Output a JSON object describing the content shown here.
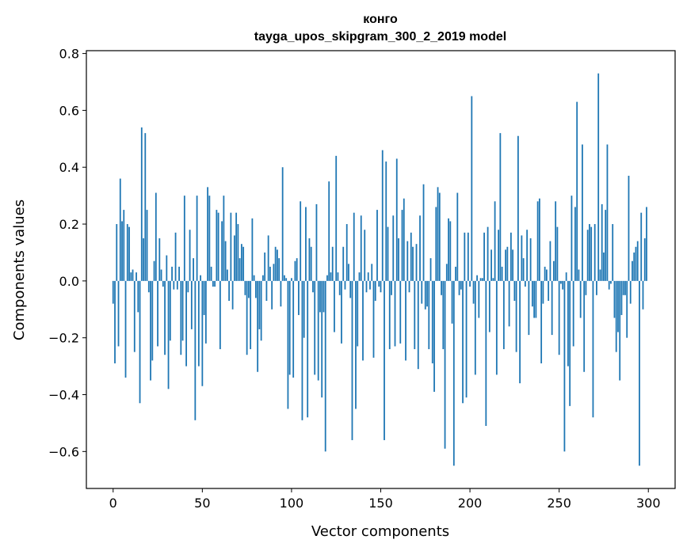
{
  "chart_data": {
    "type": "bar",
    "title_line1": "конго",
    "title_line2": "tayga_upos_skipgram_300_2_2019 model",
    "xlabel": "Vector components",
    "ylabel": "Components values",
    "xlim": [
      -15,
      315
    ],
    "ylim": [
      -0.73,
      0.81
    ],
    "xticks": [
      0,
      50,
      100,
      150,
      200,
      250,
      300
    ],
    "yticks": [
      -0.6,
      -0.4,
      -0.2,
      0.0,
      0.2,
      0.4,
      0.6,
      0.8
    ],
    "ytick_labels": [
      "−0.6",
      "−0.4",
      "−0.2",
      "0.0",
      "0.2",
      "0.4",
      "0.6",
      "0.8"
    ],
    "grid": false,
    "bar_color": "#1f77b4",
    "values": [
      -0.08,
      -0.29,
      0.2,
      -0.23,
      0.36,
      0.21,
      0.25,
      -0.34,
      0.2,
      0.19,
      0.03,
      0.04,
      -0.25,
      0.03,
      -0.11,
      -0.43,
      0.54,
      0.15,
      0.52,
      0.25,
      -0.04,
      -0.35,
      -0.28,
      0.07,
      0.31,
      -0.23,
      0.15,
      0.04,
      -0.02,
      -0.26,
      0.09,
      -0.38,
      -0.21,
      0.05,
      -0.03,
      0.17,
      -0.03,
      0.05,
      -0.26,
      -0.21,
      0.3,
      -0.3,
      -0.04,
      0.18,
      -0.17,
      0.08,
      -0.49,
      0.3,
      -0.3,
      0.02,
      -0.37,
      -0.12,
      -0.22,
      0.33,
      0.3,
      0.05,
      -0.02,
      -0.02,
      0.25,
      0.24,
      -0.24,
      0.21,
      0.3,
      0.14,
      0.04,
      -0.07,
      0.24,
      -0.1,
      0.16,
      0.24,
      0.2,
      0.08,
      0.13,
      0.12,
      -0.05,
      -0.26,
      -0.06,
      -0.24,
      0.22,
      0.02,
      -0.06,
      -0.32,
      -0.17,
      -0.21,
      0.02,
      0.1,
      -0.07,
      0.16,
      0.05,
      -0.1,
      0.06,
      0.12,
      0.11,
      0.08,
      -0.09,
      0.4,
      0.02,
      0.01,
      -0.45,
      -0.33,
      0.01,
      -0.34,
      0.07,
      0.08,
      -0.12,
      0.28,
      -0.49,
      -0.2,
      0.26,
      -0.48,
      0.15,
      0.12,
      -0.04,
      -0.33,
      0.27,
      -0.35,
      -0.11,
      -0.41,
      -0.11,
      -0.6,
      0.02,
      0.35,
      0.03,
      0.12,
      -0.18,
      0.44,
      0.03,
      -0.05,
      -0.22,
      0.12,
      -0.03,
      0.2,
      0.06,
      -0.06,
      -0.56,
      0.24,
      -0.45,
      -0.23,
      0.03,
      0.23,
      -0.28,
      0.18,
      -0.04,
      0.03,
      -0.03,
      0.06,
      -0.27,
      -0.07,
      0.25,
      -0.02,
      -0.04,
      0.46,
      -0.56,
      0.42,
      0.19,
      -0.24,
      -0.05,
      0.23,
      -0.23,
      0.43,
      0.15,
      -0.22,
      0.25,
      0.29,
      -0.28,
      0.14,
      -0.04,
      0.17,
      0.12,
      -0.24,
      0.13,
      -0.31,
      0.23,
      -0.08,
      0.34,
      -0.1,
      -0.09,
      -0.24,
      0.08,
      -0.29,
      -0.39,
      0.26,
      0.33,
      0.31,
      -0.05,
      -0.24,
      -0.59,
      0.06,
      0.22,
      0.21,
      -0.15,
      -0.65,
      0.05,
      0.31,
      -0.05,
      -0.03,
      -0.43,
      0.17,
      -0.41,
      0.17,
      -0.02,
      0.65,
      -0.08,
      -0.33,
      0.02,
      -0.13,
      0.01,
      0.01,
      0.17,
      -0.51,
      0.19,
      -0.18,
      0.11,
      0.01,
      0.28,
      -0.33,
      0.18,
      0.52,
      0.05,
      -0.24,
      0.11,
      0.12,
      -0.16,
      0.17,
      0.11,
      -0.07,
      -0.25,
      0.51,
      -0.36,
      0.16,
      0.08,
      -0.02,
      0.18,
      -0.19,
      0.15,
      -0.09,
      -0.13,
      -0.13,
      0.28,
      0.29,
      -0.29,
      -0.08,
      0.05,
      0.04,
      -0.07,
      0.14,
      -0.19,
      0.07,
      0.28,
      0.19,
      -0.26,
      -0.01,
      -0.03,
      -0.6,
      0.03,
      -0.3,
      -0.44,
      0.3,
      -0.23,
      0.26,
      0.63,
      0.04,
      -0.13,
      0.48,
      -0.32,
      -0.05,
      0.18,
      0.2,
      0.19,
      -0.48,
      0.2,
      -0.05,
      0.73,
      0.04,
      0.27,
      0.1,
      0.25,
      0.48,
      -0.03,
      -0.01,
      0.2,
      -0.13,
      -0.25,
      -0.18,
      -0.35,
      -0.12,
      -0.05,
      -0.05,
      -0.2,
      0.37,
      -0.08,
      0.07,
      0.1,
      0.12,
      0.14,
      -0.65,
      0.24,
      -0.1,
      0.15,
      0.26
    ]
  }
}
